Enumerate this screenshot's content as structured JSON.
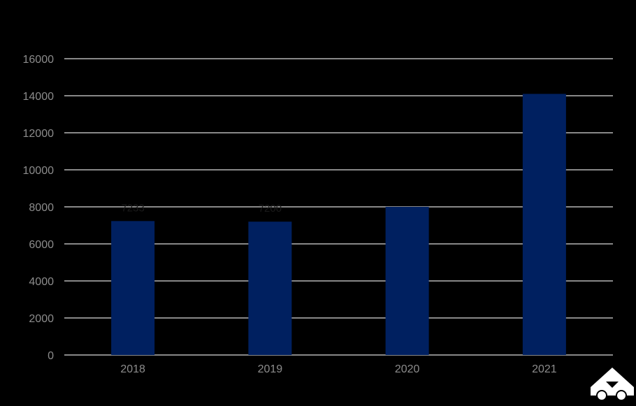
{
  "chart_data": {
    "type": "bar",
    "categories": [
      "2018",
      "2019",
      "2020",
      "2021"
    ],
    "values": [
      7233,
      7200,
      8000,
      14100
    ],
    "data_labels": [
      "7233",
      "7200",
      "",
      ""
    ],
    "title": "",
    "xlabel": "",
    "ylabel": "",
    "ylim": [
      0,
      16000
    ],
    "yticks": [
      "0",
      "2000",
      "4000",
      "6000",
      "8000",
      "10000",
      "12000",
      "14000",
      "16000"
    ],
    "grid": true,
    "legend": "none"
  },
  "colors": {
    "background": "#000000",
    "bar": "#002060",
    "gridline": "#d9d9d9",
    "tick_text": "#8c8c8c",
    "logo": "#ffffff"
  },
  "logo": {
    "icon": "delivery-vehicle-logo-icon"
  }
}
